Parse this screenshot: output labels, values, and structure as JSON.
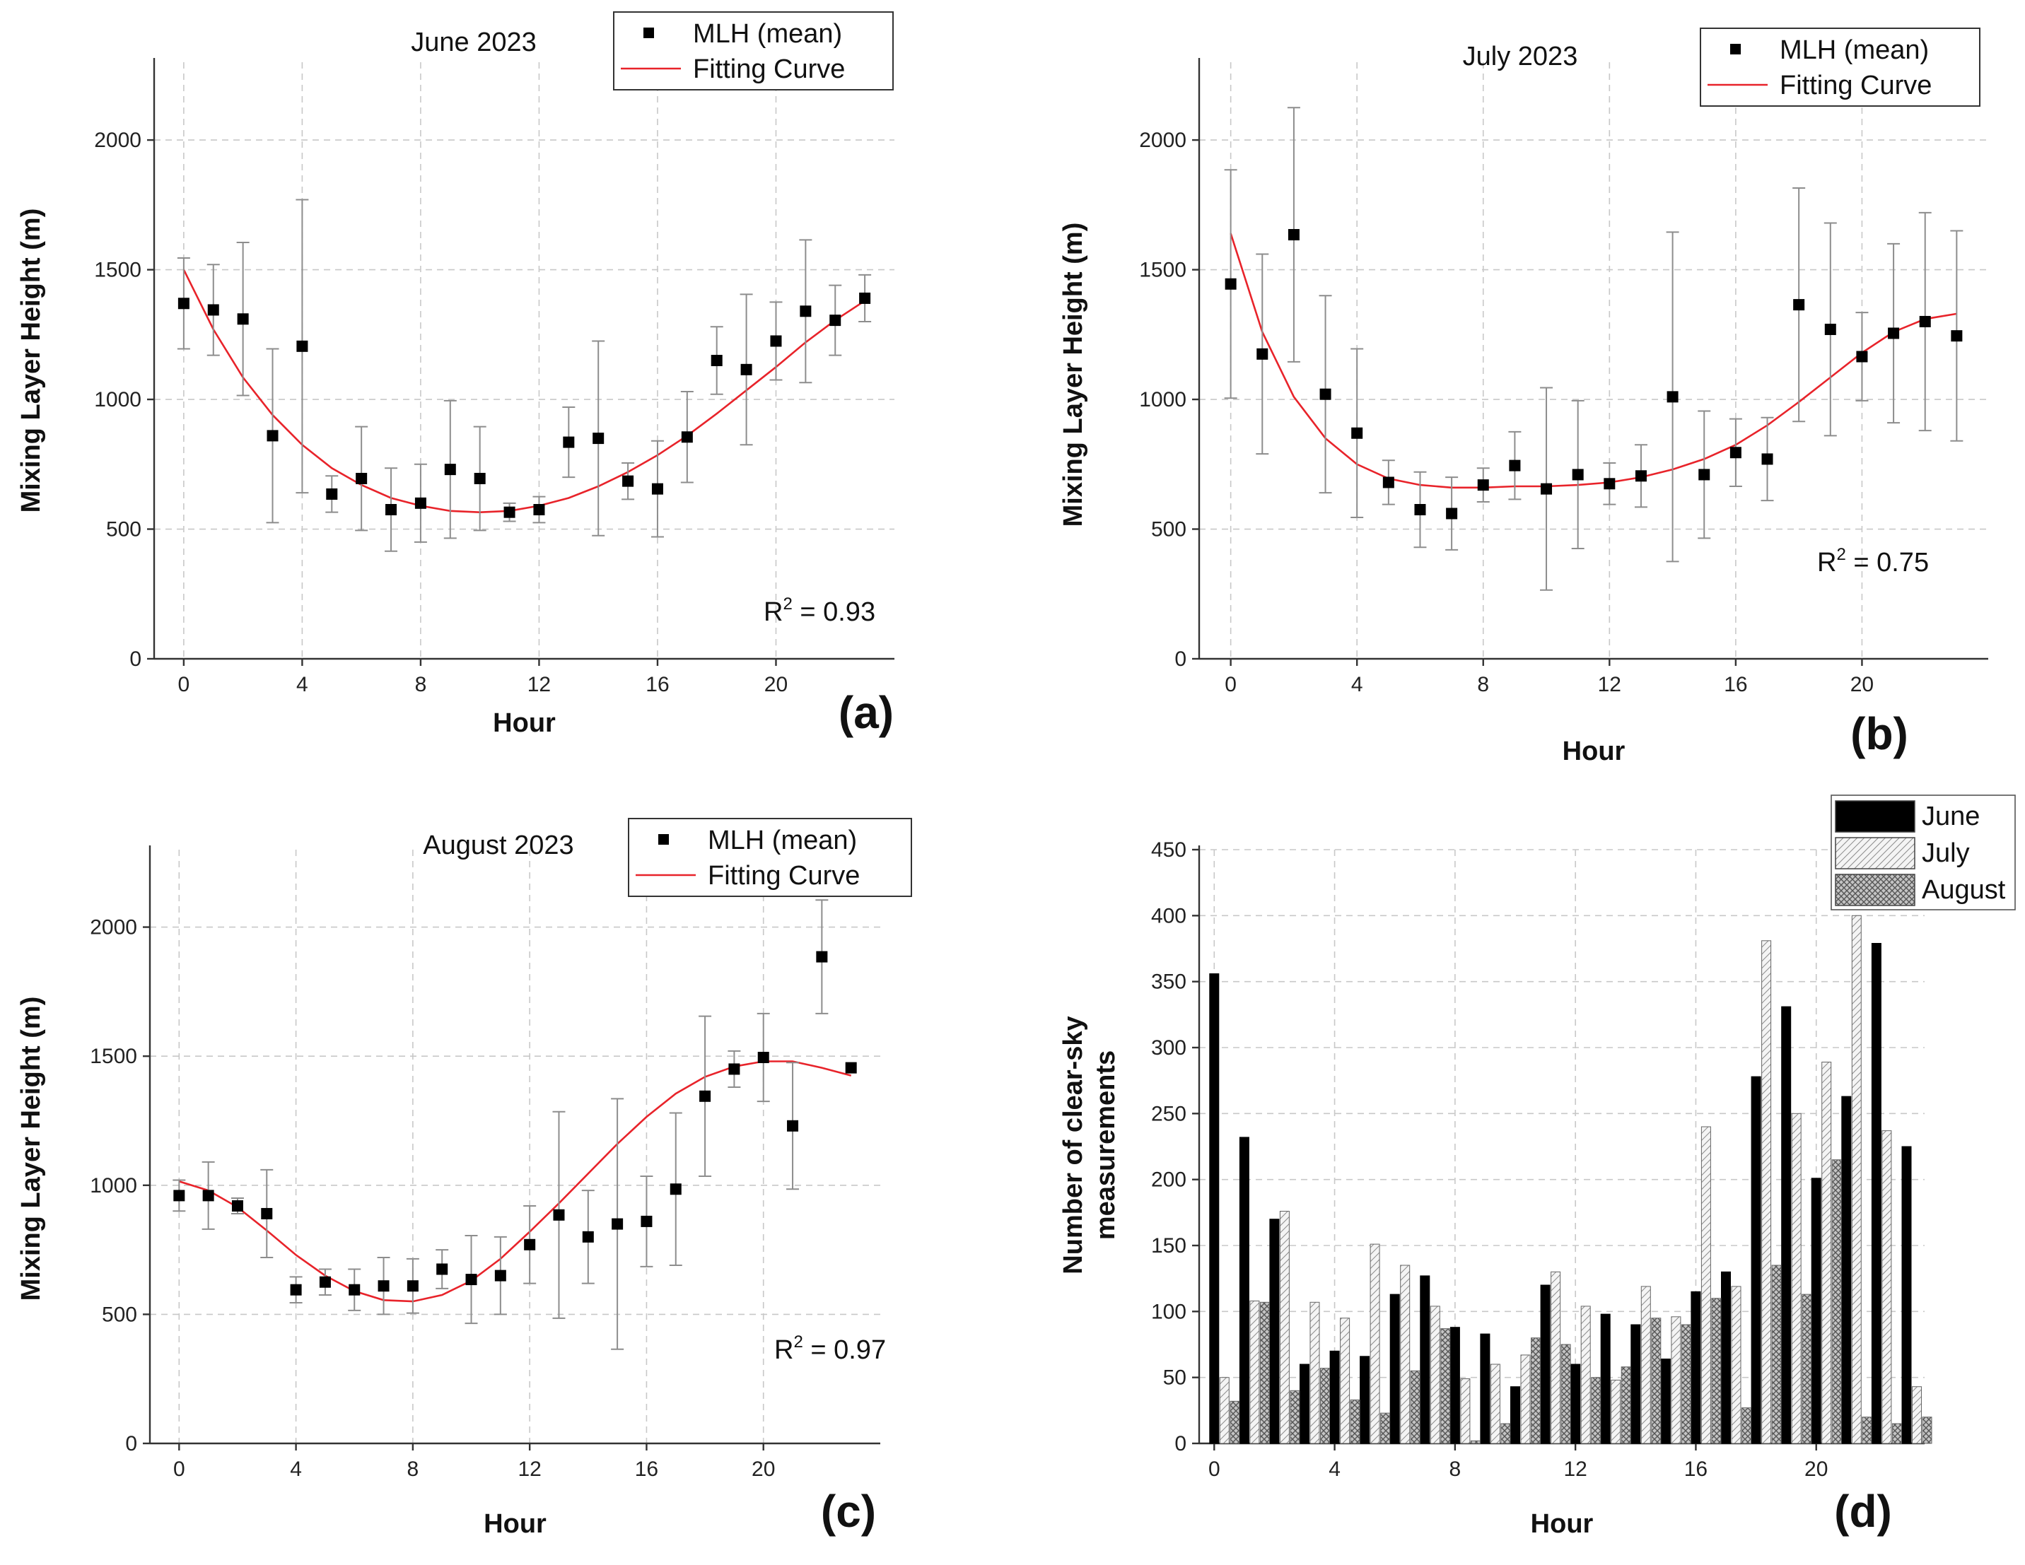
{
  "chart_data": [
    {
      "type": "scatter",
      "panel": "(a)",
      "title": "June 2023",
      "xlabel": "Hour",
      "ylabel": "Mixing Layer Height (m)",
      "xlim": [
        -1,
        24
      ],
      "ylim": [
        0,
        2300
      ],
      "xticks": [
        "0",
        "4",
        "8",
        "12",
        "16",
        "20"
      ],
      "yticks": [
        "0",
        "500",
        "1000",
        "1500",
        "2000"
      ],
      "legend": {
        "position": "top-right",
        "points_label": "MLH (mean)",
        "curve_label": "Fitting Curve"
      },
      "r2_label": "R",
      "r2_sup": "2",
      "r2_value": " = 0.93",
      "series": [
        {
          "name": "MLH (mean)",
          "x": [
            0,
            1,
            2,
            3,
            4,
            5,
            6,
            7,
            8,
            9,
            10,
            11,
            12,
            13,
            14,
            15,
            16,
            17,
            18,
            19,
            20,
            21,
            22,
            23
          ],
          "y": [
            1370,
            1345,
            1310,
            860,
            1205,
            635,
            695,
            575,
            600,
            730,
            695,
            565,
            575,
            835,
            850,
            685,
            655,
            855,
            1150,
            1115,
            1225,
            1340,
            1305,
            1390
          ],
          "err": [
            175,
            175,
            295,
            335,
            565,
            70,
            200,
            160,
            150,
            265,
            200,
            35,
            50,
            135,
            375,
            70,
            185,
            175,
            130,
            290,
            150,
            275,
            135,
            90
          ]
        },
        {
          "name": "Fitting Curve",
          "x": [
            0,
            1,
            2,
            3,
            4,
            5,
            6,
            7,
            8,
            9,
            10,
            11,
            12,
            13,
            14,
            15,
            16,
            17,
            18,
            19,
            20,
            21,
            22,
            23
          ],
          "y": [
            1500,
            1270,
            1085,
            940,
            825,
            735,
            670,
            620,
            590,
            570,
            565,
            570,
            590,
            620,
            665,
            720,
            785,
            860,
            945,
            1035,
            1125,
            1220,
            1305,
            1380
          ]
        }
      ]
    },
    {
      "type": "scatter",
      "panel": "(b)",
      "title": "July 2023",
      "xlabel": "Hour",
      "ylabel": "Mixing Layer Height (m)",
      "xlim": [
        -1,
        24
      ],
      "ylim": [
        0,
        2300
      ],
      "xticks": [
        "0",
        "4",
        "8",
        "12",
        "16",
        "20"
      ],
      "yticks": [
        "0",
        "500",
        "1000",
        "1500",
        "2000"
      ],
      "legend": {
        "position": "top-right",
        "points_label": "MLH (mean)",
        "curve_label": "Fitting Curve"
      },
      "r2_label": "R",
      "r2_sup": "2",
      "r2_value": " = 0.75",
      "series": [
        {
          "name": "MLH (mean)",
          "x": [
            0,
            1,
            2,
            3,
            4,
            5,
            6,
            7,
            8,
            9,
            10,
            11,
            12,
            13,
            14,
            15,
            16,
            17,
            18,
            19,
            20,
            21,
            22,
            23
          ],
          "y": [
            1445,
            1175,
            1635,
            1020,
            870,
            680,
            575,
            560,
            670,
            745,
            655,
            710,
            675,
            705,
            1010,
            710,
            795,
            770,
            1365,
            1270,
            1165,
            1255,
            1300,
            1245
          ],
          "err": [
            440,
            385,
            490,
            380,
            325,
            85,
            145,
            140,
            65,
            130,
            390,
            285,
            80,
            120,
            635,
            245,
            130,
            160,
            450,
            410,
            170,
            345,
            420,
            405
          ]
        },
        {
          "name": "Fitting Curve",
          "x": [
            0,
            1,
            2,
            3,
            4,
            5,
            6,
            7,
            8,
            9,
            10,
            11,
            12,
            13,
            14,
            15,
            16,
            17,
            18,
            19,
            20,
            21,
            22,
            23
          ],
          "y": [
            1640,
            1260,
            1010,
            850,
            750,
            695,
            670,
            660,
            660,
            665,
            665,
            670,
            680,
            700,
            730,
            770,
            825,
            900,
            990,
            1085,
            1180,
            1260,
            1310,
            1330
          ]
        }
      ]
    },
    {
      "type": "scatter",
      "panel": "(c)",
      "title": "August 2023",
      "xlabel": "Hour",
      "ylabel": "Mixing Layer Height (m)",
      "xlim": [
        -1,
        24
      ],
      "ylim": [
        0,
        2300
      ],
      "xticks": [
        "0",
        "4",
        "8",
        "12",
        "16",
        "20"
      ],
      "yticks": [
        "0",
        "500",
        "1000",
        "1500",
        "2000"
      ],
      "legend": {
        "position": "top-right",
        "points_label": "MLH (mean)",
        "curve_label": "Fitting Curve"
      },
      "r2_label": "R",
      "r2_sup": "2",
      "r2_value": " = 0.97",
      "series": [
        {
          "name": "MLH (mean)",
          "x": [
            0,
            1,
            2,
            3,
            4,
            5,
            6,
            7,
            8,
            9,
            10,
            11,
            12,
            13,
            14,
            15,
            16,
            17,
            18,
            19,
            20,
            21,
            22,
            23
          ],
          "y": [
            960,
            960,
            920,
            890,
            595,
            625,
            595,
            610,
            610,
            675,
            635,
            650,
            770,
            885,
            800,
            850,
            860,
            985,
            1345,
            1450,
            1495,
            1230,
            1885,
            1455
          ],
          "err": [
            60,
            130,
            30,
            170,
            50,
            50,
            80,
            110,
            105,
            75,
            170,
            150,
            150,
            400,
            180,
            485,
            175,
            295,
            310,
            70,
            170,
            245,
            220,
            0
          ]
        },
        {
          "name": "Fitting Curve",
          "x": [
            0,
            1,
            2,
            3,
            4,
            5,
            6,
            7,
            8,
            9,
            10,
            11,
            12,
            13,
            14,
            15,
            16,
            17,
            18,
            19,
            20,
            21,
            22,
            23
          ],
          "y": [
            1015,
            980,
            915,
            825,
            730,
            650,
            590,
            555,
            550,
            575,
            630,
            715,
            820,
            930,
            1045,
            1160,
            1265,
            1355,
            1420,
            1460,
            1480,
            1480,
            1455,
            1425
          ]
        }
      ]
    },
    {
      "type": "bar",
      "panel": "(d)",
      "title": "",
      "xlabel": "Hour",
      "ylabel": [
        "Number of clear-sky",
        "measurements"
      ],
      "xlim": [
        -0.5,
        23.6
      ],
      "ylim": [
        0,
        450
      ],
      "xticks": [
        "0",
        "4",
        "8",
        "12",
        "16",
        "20"
      ],
      "yticks": [
        "0",
        "50",
        "100",
        "150",
        "200",
        "250",
        "300",
        "350",
        "400",
        "450"
      ],
      "legend": {
        "position": "top-right"
      },
      "categories": [
        0,
        1,
        2,
        3,
        4,
        5,
        6,
        7,
        8,
        9,
        10,
        11,
        12,
        13,
        14,
        15,
        16,
        17,
        18,
        19,
        20,
        21,
        22,
        23
      ],
      "series": [
        {
          "name": "June",
          "color": "#000000",
          "values": [
            356,
            232,
            170,
            60,
            70,
            66,
            113,
            127,
            88,
            83,
            43,
            120,
            60,
            98,
            90,
            64,
            115,
            130,
            278,
            331,
            201,
            263,
            379,
            225
          ]
        },
        {
          "name": "July",
          "color": "#d9d9d9",
          "values": [
            50,
            108,
            176,
            107,
            95,
            151,
            135,
            104,
            49,
            60,
            67,
            130,
            104,
            48,
            119,
            96,
            240,
            119,
            381,
            250,
            289,
            400,
            237,
            43
          ]
        },
        {
          "name": "August",
          "color": "#9a9a9a",
          "values": [
            32,
            107,
            40,
            57,
            33,
            23,
            55,
            87,
            2,
            15,
            80,
            75,
            50,
            58,
            95,
            90,
            110,
            27,
            135,
            113,
            215,
            20,
            15,
            20
          ]
        }
      ]
    }
  ]
}
